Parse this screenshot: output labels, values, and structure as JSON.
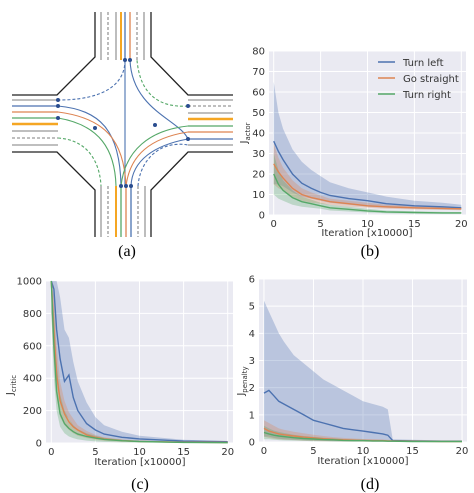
{
  "panel_labels": [
    "(a)",
    "(b)",
    "(c)",
    "(d)"
  ],
  "intersection": {
    "route_colors": {
      "left": "#4c72b0",
      "straight": "#dd8452",
      "right": "#55a868"
    }
  },
  "colors": {
    "bg": "#eaeaf2",
    "grid": "#ffffff",
    "turn_left": "#4c72b0",
    "go_straight": "#dd8452",
    "turn_right": "#55a868"
  },
  "chart_data": [
    {
      "id": "b",
      "type": "line",
      "xlabel": "Iteration [x10000]",
      "ylabel_main": "J",
      "ylabel_sub": "actor",
      "xlim": [
        -0.5,
        20.5
      ],
      "ylim": [
        0,
        80
      ],
      "xticks": [
        0,
        5,
        10,
        15,
        20
      ],
      "yticks": [
        0,
        10,
        20,
        30,
        40,
        50,
        60,
        70,
        80
      ],
      "legend": {
        "position": "top-right"
      },
      "x": [
        0,
        0.5,
        1,
        2,
        3,
        4,
        5,
        6,
        8,
        10,
        12,
        15,
        18,
        20
      ],
      "series": [
        {
          "name": "Turn left",
          "color": "#4c72b0",
          "values": [
            36,
            31,
            27,
            20,
            15.5,
            13,
            11,
            9.5,
            8,
            7,
            5.5,
            4.5,
            4,
            3.5
          ],
          "upper": [
            65,
            50,
            42,
            32,
            26,
            22,
            19,
            16,
            13,
            11,
            9,
            7,
            6,
            5
          ],
          "lower": [
            15,
            15,
            14,
            11,
            9,
            8,
            7,
            6,
            5,
            4,
            3.5,
            3,
            2.7,
            2.5
          ]
        },
        {
          "name": "Go straight",
          "color": "#dd8452",
          "values": [
            25,
            21,
            18,
            13,
            10,
            8.5,
            7.5,
            6.5,
            5.5,
            4.5,
            4,
            3.5,
            3.2,
            3
          ],
          "upper": [
            35,
            28,
            23,
            17,
            13,
            11,
            9.5,
            8,
            7,
            6,
            5,
            4.5,
            4,
            3.8
          ],
          "lower": [
            15,
            13,
            12,
            9,
            7,
            6,
            5.5,
            5,
            4,
            3.5,
            3,
            2.7,
            2.5,
            2.3
          ]
        },
        {
          "name": "Turn right",
          "color": "#55a868",
          "values": [
            20,
            15,
            12,
            8.5,
            6.5,
            5.5,
            4.5,
            3.5,
            2.8,
            2,
            1.5,
            1.2,
            1,
            1
          ],
          "upper": [
            30,
            22,
            17,
            12,
            9,
            7.5,
            6,
            5,
            4,
            3,
            2.2,
            1.8,
            1.5,
            1.4
          ],
          "lower": [
            10,
            8,
            7,
            5,
            4,
            3.5,
            3,
            2.2,
            1.7,
            1.2,
            0.9,
            0.7,
            0.6,
            0.6
          ]
        }
      ]
    },
    {
      "id": "c",
      "type": "line",
      "xlabel": "Iteration [x10000]",
      "ylabel_main": "J",
      "ylabel_sub": "critic",
      "xlim": [
        -0.6,
        20.6
      ],
      "ylim": [
        0,
        1000
      ],
      "xticks": [
        0,
        5,
        10,
        15,
        20
      ],
      "yticks": [
        0,
        200,
        400,
        600,
        800,
        1000
      ],
      "x": [
        0,
        0.3,
        0.6,
        1,
        1.5,
        2,
        2.5,
        3,
        4,
        5,
        6,
        8,
        10,
        15,
        20
      ],
      "series": [
        {
          "name": "Turn left",
          "color": "#4c72b0",
          "values": [
            1000,
            950,
            700,
            520,
            380,
            420,
            280,
            200,
            120,
            80,
            55,
            35,
            25,
            12,
            8
          ],
          "upper": [
            1000,
            1000,
            1000,
            900,
            700,
            650,
            500,
            380,
            250,
            160,
            110,
            70,
            45,
            20,
            12
          ],
          "lower": [
            800,
            600,
            400,
            250,
            180,
            150,
            100,
            80,
            50,
            30,
            20,
            12,
            8,
            4,
            3
          ]
        },
        {
          "name": "Go straight",
          "color": "#dd8452",
          "values": [
            1000,
            700,
            420,
            260,
            180,
            130,
            100,
            80,
            50,
            35,
            25,
            15,
            10,
            5,
            3
          ],
          "upper": [
            1000,
            900,
            600,
            380,
            260,
            190,
            150,
            110,
            75,
            50,
            35,
            22,
            15,
            8,
            5
          ],
          "lower": [
            800,
            500,
            280,
            160,
            110,
            80,
            60,
            45,
            30,
            20,
            14,
            8,
            5,
            2,
            1
          ]
        },
        {
          "name": "Turn right",
          "color": "#55a868",
          "values": [
            1000,
            600,
            320,
            180,
            120,
            90,
            70,
            55,
            40,
            30,
            22,
            14,
            9,
            4,
            2
          ],
          "upper": [
            1000,
            800,
            500,
            300,
            200,
            150,
            110,
            85,
            60,
            45,
            32,
            20,
            13,
            6,
            4
          ],
          "lower": [
            800,
            400,
            200,
            100,
            60,
            40,
            30,
            22,
            15,
            10,
            7,
            4,
            3,
            1,
            0.5
          ]
        }
      ]
    },
    {
      "id": "d",
      "type": "line",
      "xlabel": "Iteration [x10000]",
      "ylabel_main": "J",
      "ylabel_sub": "penalty",
      "xlim": [
        -0.5,
        20.5
      ],
      "ylim": [
        0,
        6
      ],
      "xticks": [
        0,
        5,
        10,
        15,
        20
      ],
      "yticks": [
        0,
        1,
        2,
        3,
        4,
        5,
        6
      ],
      "x": [
        0,
        0.5,
        1,
        1.5,
        2,
        3,
        4,
        5,
        6,
        7,
        8,
        9,
        10,
        11,
        12,
        12.5,
        13,
        15,
        18,
        20
      ],
      "series": [
        {
          "name": "Turn left",
          "color": "#4c72b0",
          "values": [
            1.8,
            1.9,
            1.7,
            1.5,
            1.4,
            1.2,
            1.0,
            0.8,
            0.7,
            0.6,
            0.5,
            0.45,
            0.4,
            0.35,
            0.3,
            0.25,
            0.05,
            0.04,
            0.03,
            0.03
          ],
          "upper": [
            5.2,
            4.8,
            4.4,
            4.0,
            3.7,
            3.2,
            2.9,
            2.6,
            2.3,
            2.1,
            1.9,
            1.7,
            1.5,
            1.4,
            1.3,
            1.2,
            0.1,
            0.08,
            0.06,
            0.06
          ],
          "lower": [
            0.2,
            0.2,
            0.15,
            0.12,
            0.1,
            0.08,
            0.06,
            0.05,
            0.04,
            0.03,
            0.02,
            0.02,
            0.02,
            0.01,
            0.01,
            0.01,
            0.01,
            0.01,
            0.01,
            0.01
          ]
        },
        {
          "name": "Go straight",
          "color": "#dd8452",
          "values": [
            0.5,
            0.4,
            0.35,
            0.3,
            0.27,
            0.22,
            0.18,
            0.15,
            0.12,
            0.1,
            0.08,
            0.07,
            0.06,
            0.05,
            0.05,
            0.04,
            0.04,
            0.03,
            0.02,
            0.02
          ],
          "upper": [
            0.8,
            0.7,
            0.6,
            0.5,
            0.45,
            0.38,
            0.32,
            0.27,
            0.22,
            0.18,
            0.15,
            0.13,
            0.11,
            0.1,
            0.09,
            0.08,
            0.07,
            0.06,
            0.05,
            0.05
          ],
          "lower": [
            0.2,
            0.15,
            0.12,
            0.1,
            0.09,
            0.07,
            0.05,
            0.04,
            0.03,
            0.03,
            0.02,
            0.02,
            0.02,
            0.01,
            0.01,
            0.01,
            0.01,
            0.01,
            0.01,
            0.01
          ]
        },
        {
          "name": "Turn right",
          "color": "#55a868",
          "values": [
            0.35,
            0.3,
            0.25,
            0.22,
            0.2,
            0.16,
            0.13,
            0.11,
            0.09,
            0.08,
            0.06,
            0.05,
            0.05,
            0.04,
            0.04,
            0.03,
            0.03,
            0.02,
            0.02,
            0.02
          ],
          "upper": [
            0.6,
            0.5,
            0.42,
            0.37,
            0.33,
            0.27,
            0.22,
            0.19,
            0.16,
            0.14,
            0.11,
            0.09,
            0.08,
            0.07,
            0.06,
            0.05,
            0.05,
            0.04,
            0.04,
            0.04
          ],
          "lower": [
            0.1,
            0.1,
            0.08,
            0.07,
            0.06,
            0.05,
            0.04,
            0.03,
            0.03,
            0.02,
            0.02,
            0.01,
            0.01,
            0.01,
            0.01,
            0.01,
            0.01,
            0.01,
            0.01,
            0.01
          ]
        }
      ]
    }
  ]
}
